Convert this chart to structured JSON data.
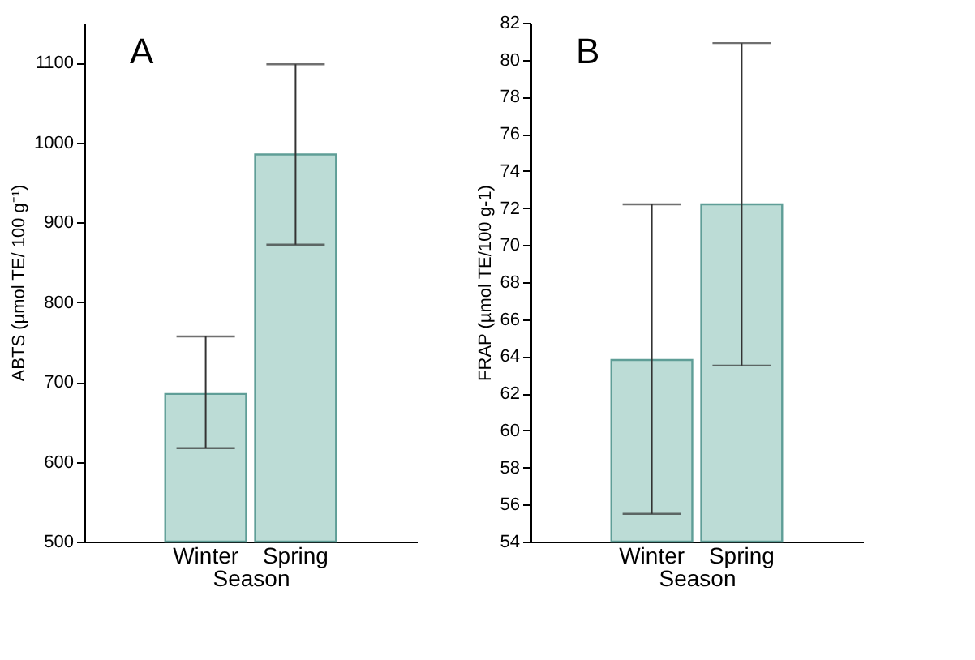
{
  "chart_data": [
    {
      "type": "bar",
      "ylabel": "ABTS (µmol TE/ 100 g⁻¹)",
      "xlabel": "Season",
      "categories": [
        "Winter",
        "Spring"
      ],
      "values": [
        685,
        985
      ],
      "errors": [
        [
          617,
          757
        ],
        [
          872,
          1098
        ]
      ],
      "color": "#bcdcd6",
      "ylim": [
        500,
        1150
      ],
      "yticks": [
        500,
        600,
        700,
        800,
        900,
        1000,
        1100
      ],
      "annotations": [
        "A"
      ]
    },
    {
      "type": "bar",
      "ylabel": "FRAP (µmol TE/100 g-1)",
      "xlabel": "Season",
      "categories": [
        "Winter",
        "Spring"
      ],
      "values": [
        63.8,
        72.2
      ],
      "errors": [
        [
          55.5,
          72.2
        ],
        [
          63.5,
          80.9
        ]
      ],
      "color": "#bcdcd6",
      "ylim": [
        54,
        82
      ],
      "yticks": [
        54,
        56,
        58,
        60,
        62,
        64,
        66,
        68,
        70,
        72,
        74,
        76,
        78,
        80,
        82
      ],
      "annotations": [
        "B"
      ]
    }
  ]
}
